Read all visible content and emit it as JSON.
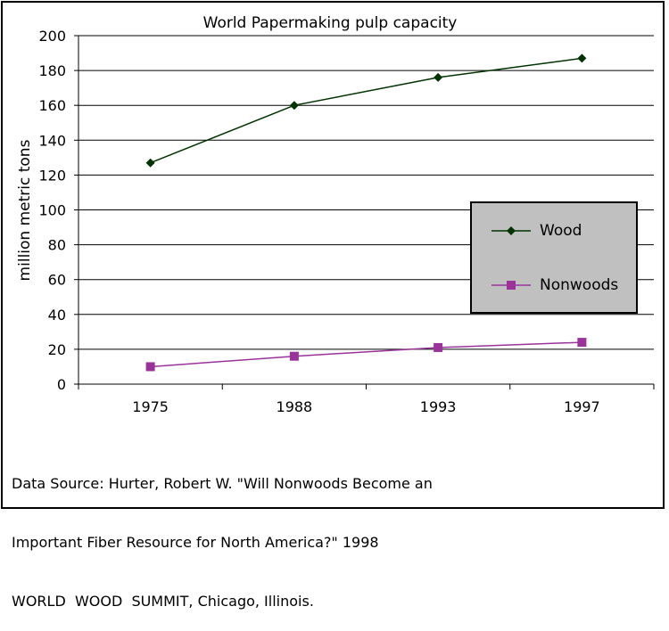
{
  "chart_data": {
    "type": "line",
    "title": "World Papermaking pulp capacity",
    "ylabel": "million metric tons",
    "xlabel": "",
    "categories": [
      "1975",
      "1988",
      "1993",
      "1997"
    ],
    "ylim": [
      0,
      200
    ],
    "yticks": [
      0,
      20,
      40,
      60,
      80,
      100,
      120,
      140,
      160,
      180,
      200
    ],
    "grid": true,
    "legend_position": "right",
    "series": [
      {
        "name": "Wood",
        "values": [
          127,
          160,
          176,
          187
        ],
        "color": "#003300",
        "marker": "diamond"
      },
      {
        "name": "Nonwoods",
        "values": [
          10,
          16,
          21,
          24
        ],
        "color": "#993399",
        "marker": "square"
      }
    ]
  },
  "source_lines": [
    "Data Source: Hurter, Robert W. \"Will Nonwoods Become an",
    "Important Fiber Resource for North America?\" 1998",
    "WORLD  WOOD  SUMMIT, Chicago, Illinois."
  ]
}
